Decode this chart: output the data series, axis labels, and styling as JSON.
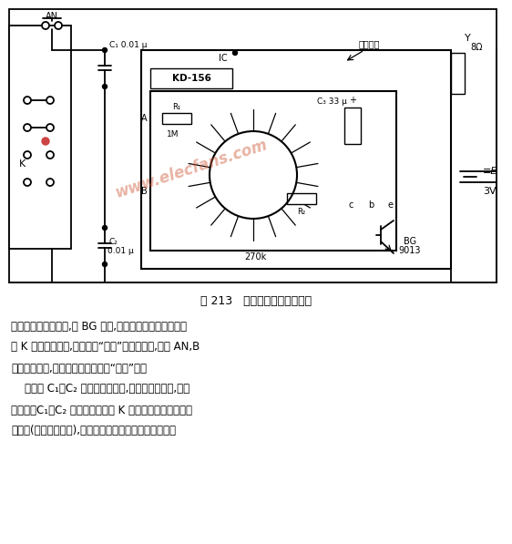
{
  "title": "图 213   集成电路音乐门铃电路",
  "bg_color": "#ffffff",
  "fig_width": 5.62,
  "fig_height": 5.97,
  "watermark": "www.elecfans.com",
  "caption_line1": "输出内贮的鸟鸣信号,经 BG 放大,推动扬声器发出声响。如",
  "caption_line2": "将 K 拨向另一位置,线路即为“叮咚”门铃。此时,按下 AN,B",
  "caption_line3": "端得到负脉冲,扬声器就发出清脆的“叮咚”声。",
  "caption_line4": "    线路中 C₁、C₂ 瓷片电容的作用,是为了滤掉干扰,避免",
  "caption_line5": "误触发。C₁、C₂ 可直接焊在开关 K 上。印刷线路板上的少",
  "caption_line6": "许改动(图中的划开处),是为了提高音量、降低静态功耗。"
}
